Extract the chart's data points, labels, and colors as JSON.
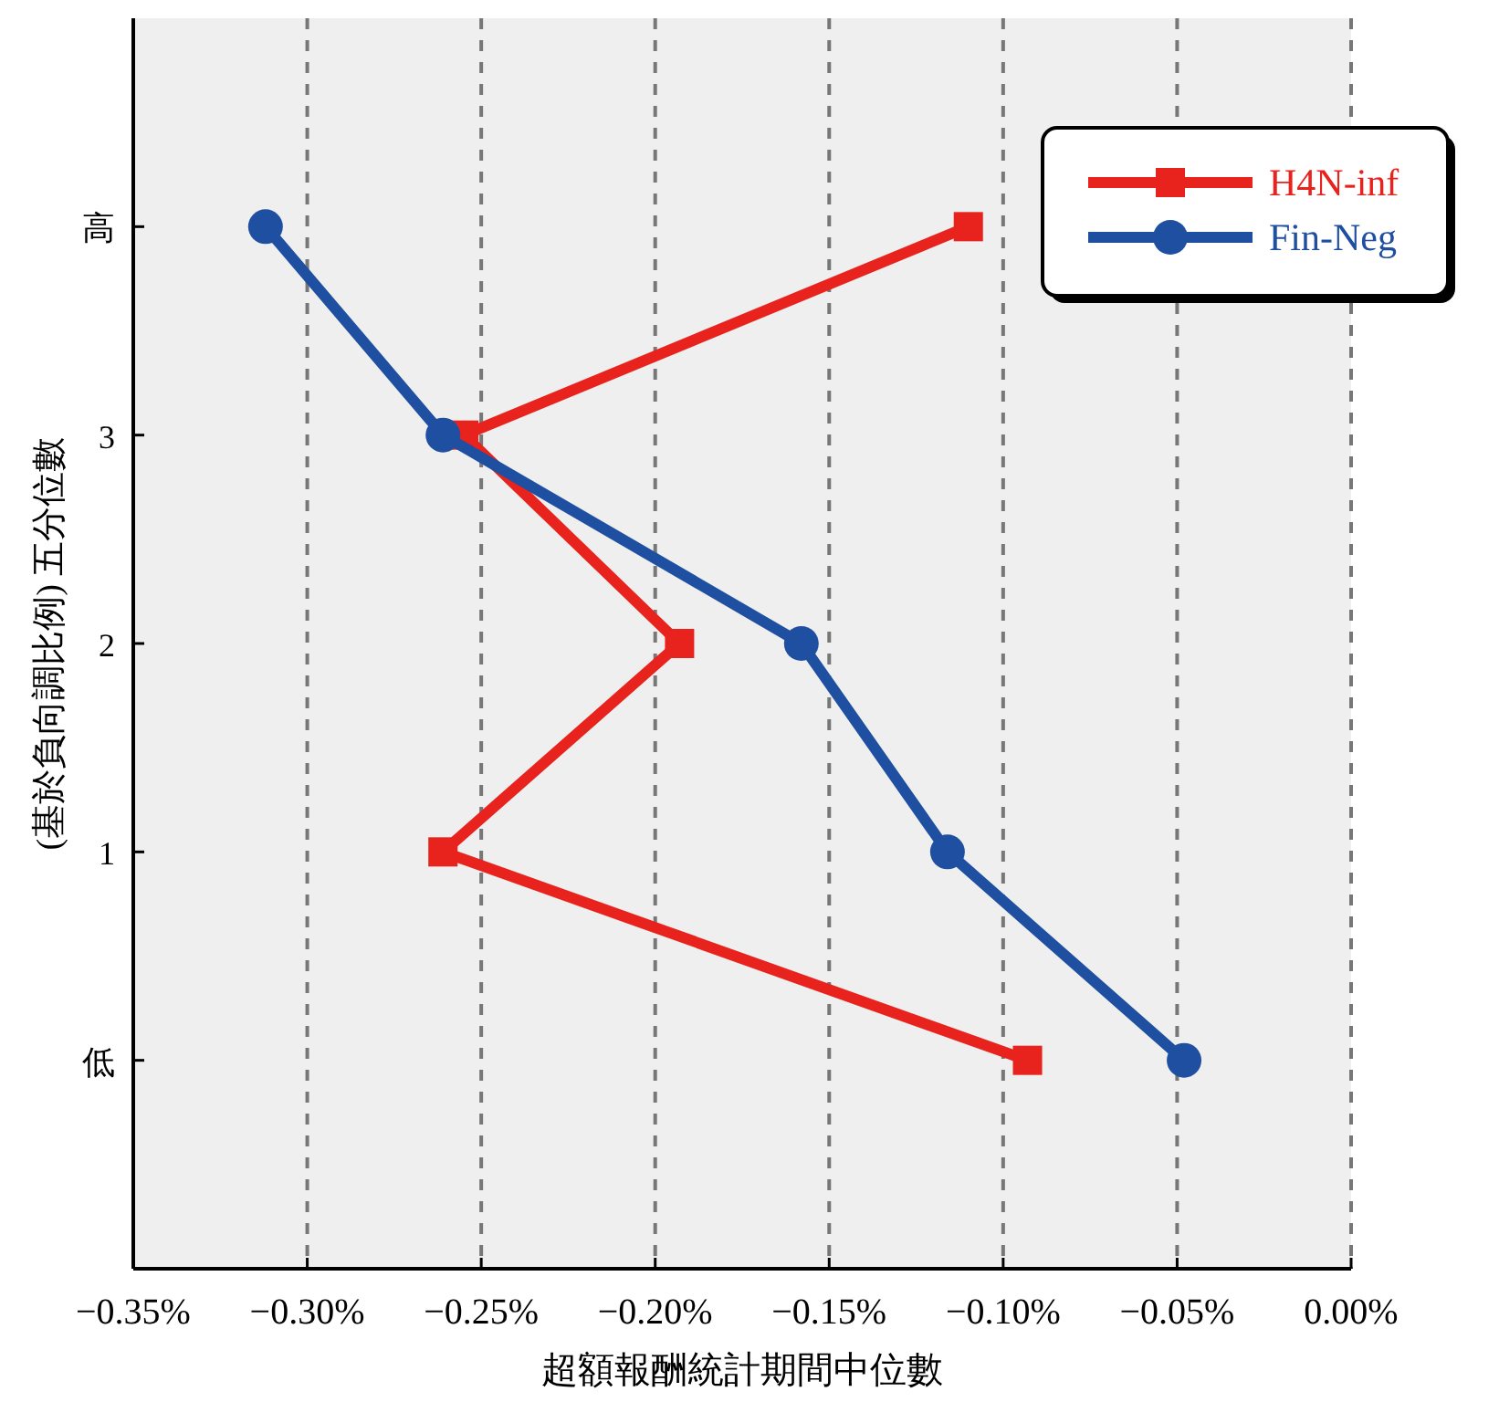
{
  "chart_data": {
    "type": "line",
    "xlabel": "超額報酬統計期間中位數",
    "ylabel": "(基於負向調比例) 五分位數",
    "xlim": [
      -0.35,
      0
    ],
    "xticks": [
      {
        "value": -0.35,
        "label": "−0.35%"
      },
      {
        "value": -0.3,
        "label": "−0.30%"
      },
      {
        "value": -0.25,
        "label": "−0.25%"
      },
      {
        "value": -0.2,
        "label": "−0.20%"
      },
      {
        "value": -0.15,
        "label": "−0.15%"
      },
      {
        "value": -0.1,
        "label": "−0.10%"
      },
      {
        "value": -0.05,
        "label": "−0.05%"
      },
      {
        "value": 0,
        "label": "0.00%"
      }
    ],
    "ylim": [
      -1,
      5
    ],
    "yticks": [
      {
        "value": 0,
        "label": "低"
      },
      1,
      2,
      3,
      {
        "value": 4,
        "label": "高"
      }
    ],
    "grid": "x",
    "legend": "top right",
    "series": [
      {
        "name": "H4N-inf",
        "color": "#e8221c",
        "marker": "square",
        "x": [
          -0.093,
          -0.261,
          -0.193,
          -0.255,
          -0.11
        ],
        "values": [
          0,
          1,
          2,
          3,
          4
        ]
      },
      {
        "name": "Fin-Neg",
        "color": "#1f4fa0",
        "marker": "circle",
        "x": [
          -0.048,
          -0.116,
          -0.158,
          -0.261,
          -0.312
        ],
        "values": [
          0,
          1,
          2,
          3,
          4
        ]
      }
    ]
  }
}
